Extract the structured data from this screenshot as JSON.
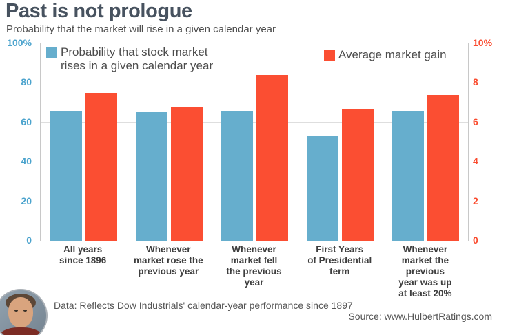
{
  "header": {
    "title": "Past is not prologue",
    "subtitle": "Probability that the market will rise in a given calendar year"
  },
  "chart_data": {
    "type": "bar",
    "title": "Past is not prologue",
    "subtitle": "Probability that the market will rise in a given calendar year",
    "categories": [
      [
        "All years",
        "since 1896"
      ],
      [
        "Whenever",
        "market rose the",
        "previous year"
      ],
      [
        "Whenever",
        "market fell",
        "the previous",
        "year"
      ],
      [
        "First Years",
        "of Presidential",
        "term"
      ],
      [
        "Whenever",
        "market the",
        "previous",
        "year was up",
        "at least 20%"
      ]
    ],
    "series": [
      {
        "name": "Probability that stock market rises in a given calendar year",
        "legend_lines": [
          "Probability that stock market",
          "rises in a given calendar year"
        ],
        "axis": "left",
        "color": "#66AECD",
        "values": [
          66,
          65,
          66,
          53,
          66
        ]
      },
      {
        "name": "Average market gain",
        "legend_lines": [
          "Average market gain"
        ],
        "axis": "right",
        "color": "#FB4E32",
        "values": [
          7.5,
          6.8,
          8.4,
          6.7,
          7.4
        ]
      }
    ],
    "left_axis": {
      "ticks": [
        "100%",
        "80",
        "60",
        "40",
        "20",
        "0"
      ],
      "min": 0,
      "max": 100,
      "color": "#4BA3CD"
    },
    "right_axis": {
      "ticks": [
        "10%",
        "8",
        "6",
        "4",
        "2",
        "0"
      ],
      "min": 0,
      "max": 10,
      "color": "#FA4B2E"
    },
    "grid": true,
    "legend_position": "top-inside"
  },
  "footer": {
    "data_note": "Data: Reflects Dow Industrials' calendar-year performance since 1897",
    "source": "Source: www.HulbertRatings.com",
    "avatar_icon": "author-headshot"
  }
}
